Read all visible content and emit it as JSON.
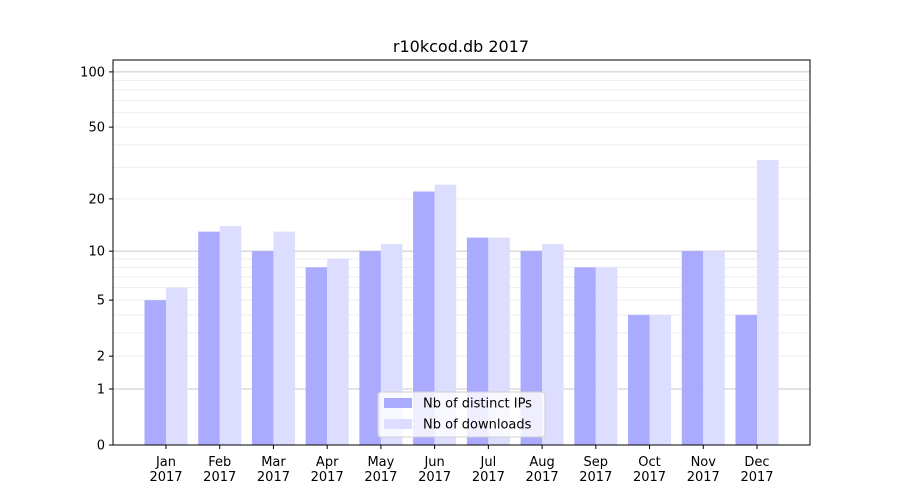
{
  "chart_data": {
    "type": "bar",
    "title": "r10kcod.db 2017",
    "xlabel": "",
    "ylabel": "",
    "yscale": "log(1+y)",
    "ylim": [
      0,
      116
    ],
    "yticks": [
      0,
      1,
      2,
      5,
      10,
      20,
      50,
      100
    ],
    "grid": true,
    "legend_position": "bottom-center",
    "categories": [
      "Jan\n2017",
      "Feb\n2017",
      "Mar\n2017",
      "Apr\n2017",
      "May\n2017",
      "Jun\n2017",
      "Jul\n2017",
      "Aug\n2017",
      "Sep\n2017",
      "Oct\n2017",
      "Nov\n2017",
      "Dec\n2017"
    ],
    "series": [
      {
        "name": "Nb of distinct IPs",
        "color": "#aaaaff",
        "values": [
          5,
          13,
          10,
          8,
          10,
          22,
          12,
          10,
          8,
          4,
          10,
          4
        ]
      },
      {
        "name": "Nb of downloads",
        "color": "#ddddff",
        "values": [
          6,
          14,
          13,
          9,
          11,
          24,
          12,
          11,
          8,
          4,
          10,
          33
        ]
      }
    ]
  }
}
